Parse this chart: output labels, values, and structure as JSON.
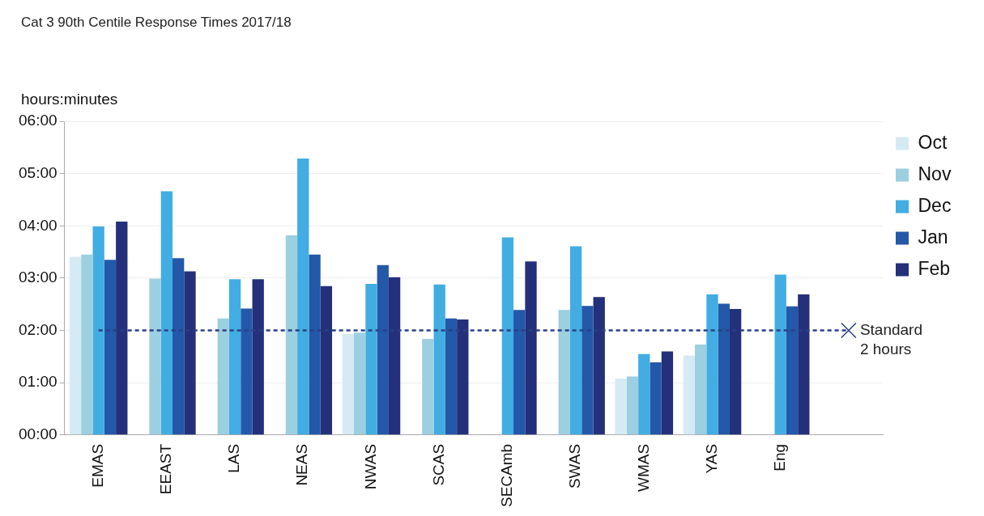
{
  "chart_data": {
    "type": "bar",
    "title": "Cat 3 90th Centile Response Times 2017/18",
    "ylabel": "hours:minutes",
    "categories": [
      "EMAS",
      "EEAST",
      "LAS",
      "NEAS",
      "NWAS",
      "SCAS",
      "SECAmb",
      "SWAS",
      "WMAS",
      "YAS",
      "Eng",
      null
    ],
    "series": [
      {
        "name": "Oct",
        "color": "#d6eaf3",
        "values": [
          3.41,
          null,
          null,
          null,
          1.93,
          null,
          null,
          null,
          1.08,
          1.52,
          null,
          null
        ]
      },
      {
        "name": "Nov",
        "color": "#9ccfe0",
        "values": [
          3.45,
          2.99,
          2.23,
          3.82,
          1.96,
          1.84,
          null,
          2.39,
          1.12,
          1.73,
          null,
          null
        ]
      },
      {
        "name": "Dec",
        "color": "#41ade2",
        "values": [
          3.99,
          4.66,
          2.98,
          5.29,
          2.89,
          2.88,
          3.78,
          3.61,
          1.55,
          2.69,
          3.07,
          null
        ]
      },
      {
        "name": "Jan",
        "color": "#2458a8",
        "values": [
          3.35,
          3.38,
          2.42,
          3.45,
          3.25,
          2.23,
          2.39,
          2.47,
          1.39,
          2.51,
          2.46,
          null
        ]
      },
      {
        "name": "Feb",
        "color": "#24307a",
        "values": [
          4.08,
          3.13,
          2.98,
          2.85,
          3.02,
          2.21,
          3.32,
          2.64,
          1.6,
          2.41,
          2.69,
          null
        ]
      }
    ],
    "ylim": [
      0,
      6
    ],
    "yticks": [
      {
        "value": 0,
        "label": "00:00"
      },
      {
        "value": 1,
        "label": "01:00"
      },
      {
        "value": 2,
        "label": "02:00"
      },
      {
        "value": 3,
        "label": "03:00"
      },
      {
        "value": 4,
        "label": "04:00"
      },
      {
        "value": 5,
        "label": "05:00"
      },
      {
        "value": 6,
        "label": "06:00"
      }
    ],
    "ref_lines": [
      {
        "axis": "y",
        "value": 2,
        "label": "Standard\n2 hours",
        "color": "#2a3f86",
        "line_style": "dashed"
      }
    ],
    "grid": "y",
    "legend": "top right"
  }
}
